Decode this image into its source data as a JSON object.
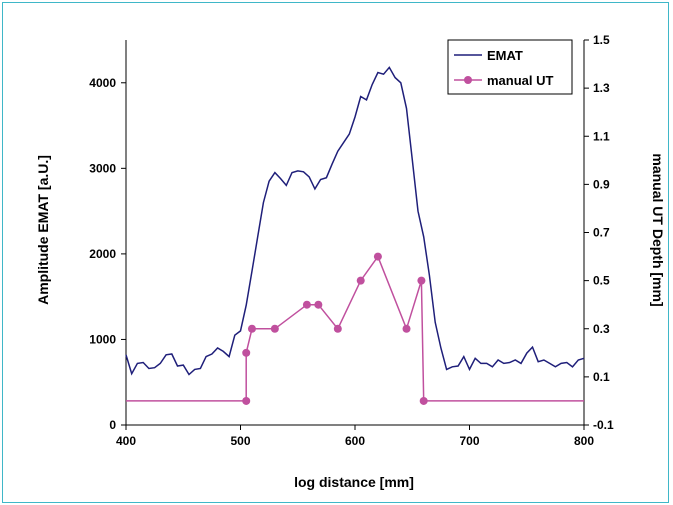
{
  "chart_data": {
    "type": "line",
    "xlabel": "log distance [mm]",
    "ylabel_left": "Amplitude EMAT [a.U.]",
    "ylabel_right": "manual UT Depth [mm]",
    "x_range": [
      400,
      800
    ],
    "x_ticks": [
      400,
      500,
      600,
      700,
      800
    ],
    "y_left_range": [
      0,
      4500
    ],
    "y_left_ticks": [
      0,
      1000,
      2000,
      3000,
      4000
    ],
    "y_right_range": [
      -0.1,
      1.5
    ],
    "y_right_ticks": [
      -0.1,
      0.1,
      0.3,
      0.5,
      0.7,
      0.9,
      1.1,
      1.3,
      1.5
    ],
    "grid": false,
    "legend_position": "top-right",
    "series": [
      {
        "name": "EMAT",
        "axis": "left",
        "color": "#1f1f7a",
        "markers": false,
        "x": [
          400,
          405,
          410,
          415,
          420,
          425,
          430,
          435,
          440,
          445,
          450,
          455,
          460,
          465,
          470,
          475,
          480,
          485,
          490,
          495,
          500,
          505,
          510,
          515,
          520,
          525,
          530,
          535,
          540,
          545,
          550,
          555,
          560,
          565,
          570,
          575,
          580,
          585,
          590,
          595,
          600,
          605,
          610,
          615,
          620,
          625,
          630,
          635,
          640,
          645,
          650,
          655,
          660,
          665,
          670,
          675,
          680,
          685,
          690,
          695,
          700,
          705,
          710,
          715,
          720,
          725,
          730,
          735,
          740,
          745,
          750,
          755,
          760,
          765,
          770,
          775,
          780,
          785,
          790,
          795,
          800
        ],
        "y": [
          820,
          600,
          720,
          730,
          660,
          670,
          720,
          820,
          830,
          690,
          700,
          590,
          650,
          660,
          800,
          830,
          900,
          860,
          800,
          1050,
          1100,
          1400,
          1800,
          2200,
          2600,
          2850,
          2950,
          2880,
          2800,
          2950,
          2970,
          2960,
          2900,
          2760,
          2870,
          2890,
          3050,
          3200,
          3300,
          3400,
          3600,
          3840,
          3800,
          3980,
          4120,
          4100,
          4180,
          4060,
          4000,
          3700,
          3100,
          2500,
          2200,
          1750,
          1200,
          900,
          650,
          680,
          690,
          800,
          650,
          780,
          720,
          720,
          680,
          760,
          720,
          730,
          760,
          720,
          840,
          910,
          740,
          760,
          720,
          680,
          720,
          730,
          680,
          760,
          780
        ]
      },
      {
        "name": "manual UT",
        "axis": "right",
        "color": "#c0509e",
        "markers": true,
        "x": [
          400,
          505,
          505,
          510,
          530,
          558,
          568,
          585,
          605,
          620,
          645,
          658,
          660,
          800
        ],
        "y": [
          0,
          0,
          0.2,
          0.3,
          0.3,
          0.4,
          0.4,
          0.3,
          0.5,
          0.6,
          0.3,
          0.5,
          0,
          0
        ],
        "marker_indices": [
          1,
          2,
          3,
          4,
          5,
          6,
          7,
          8,
          9,
          10,
          11,
          12
        ]
      }
    ]
  }
}
